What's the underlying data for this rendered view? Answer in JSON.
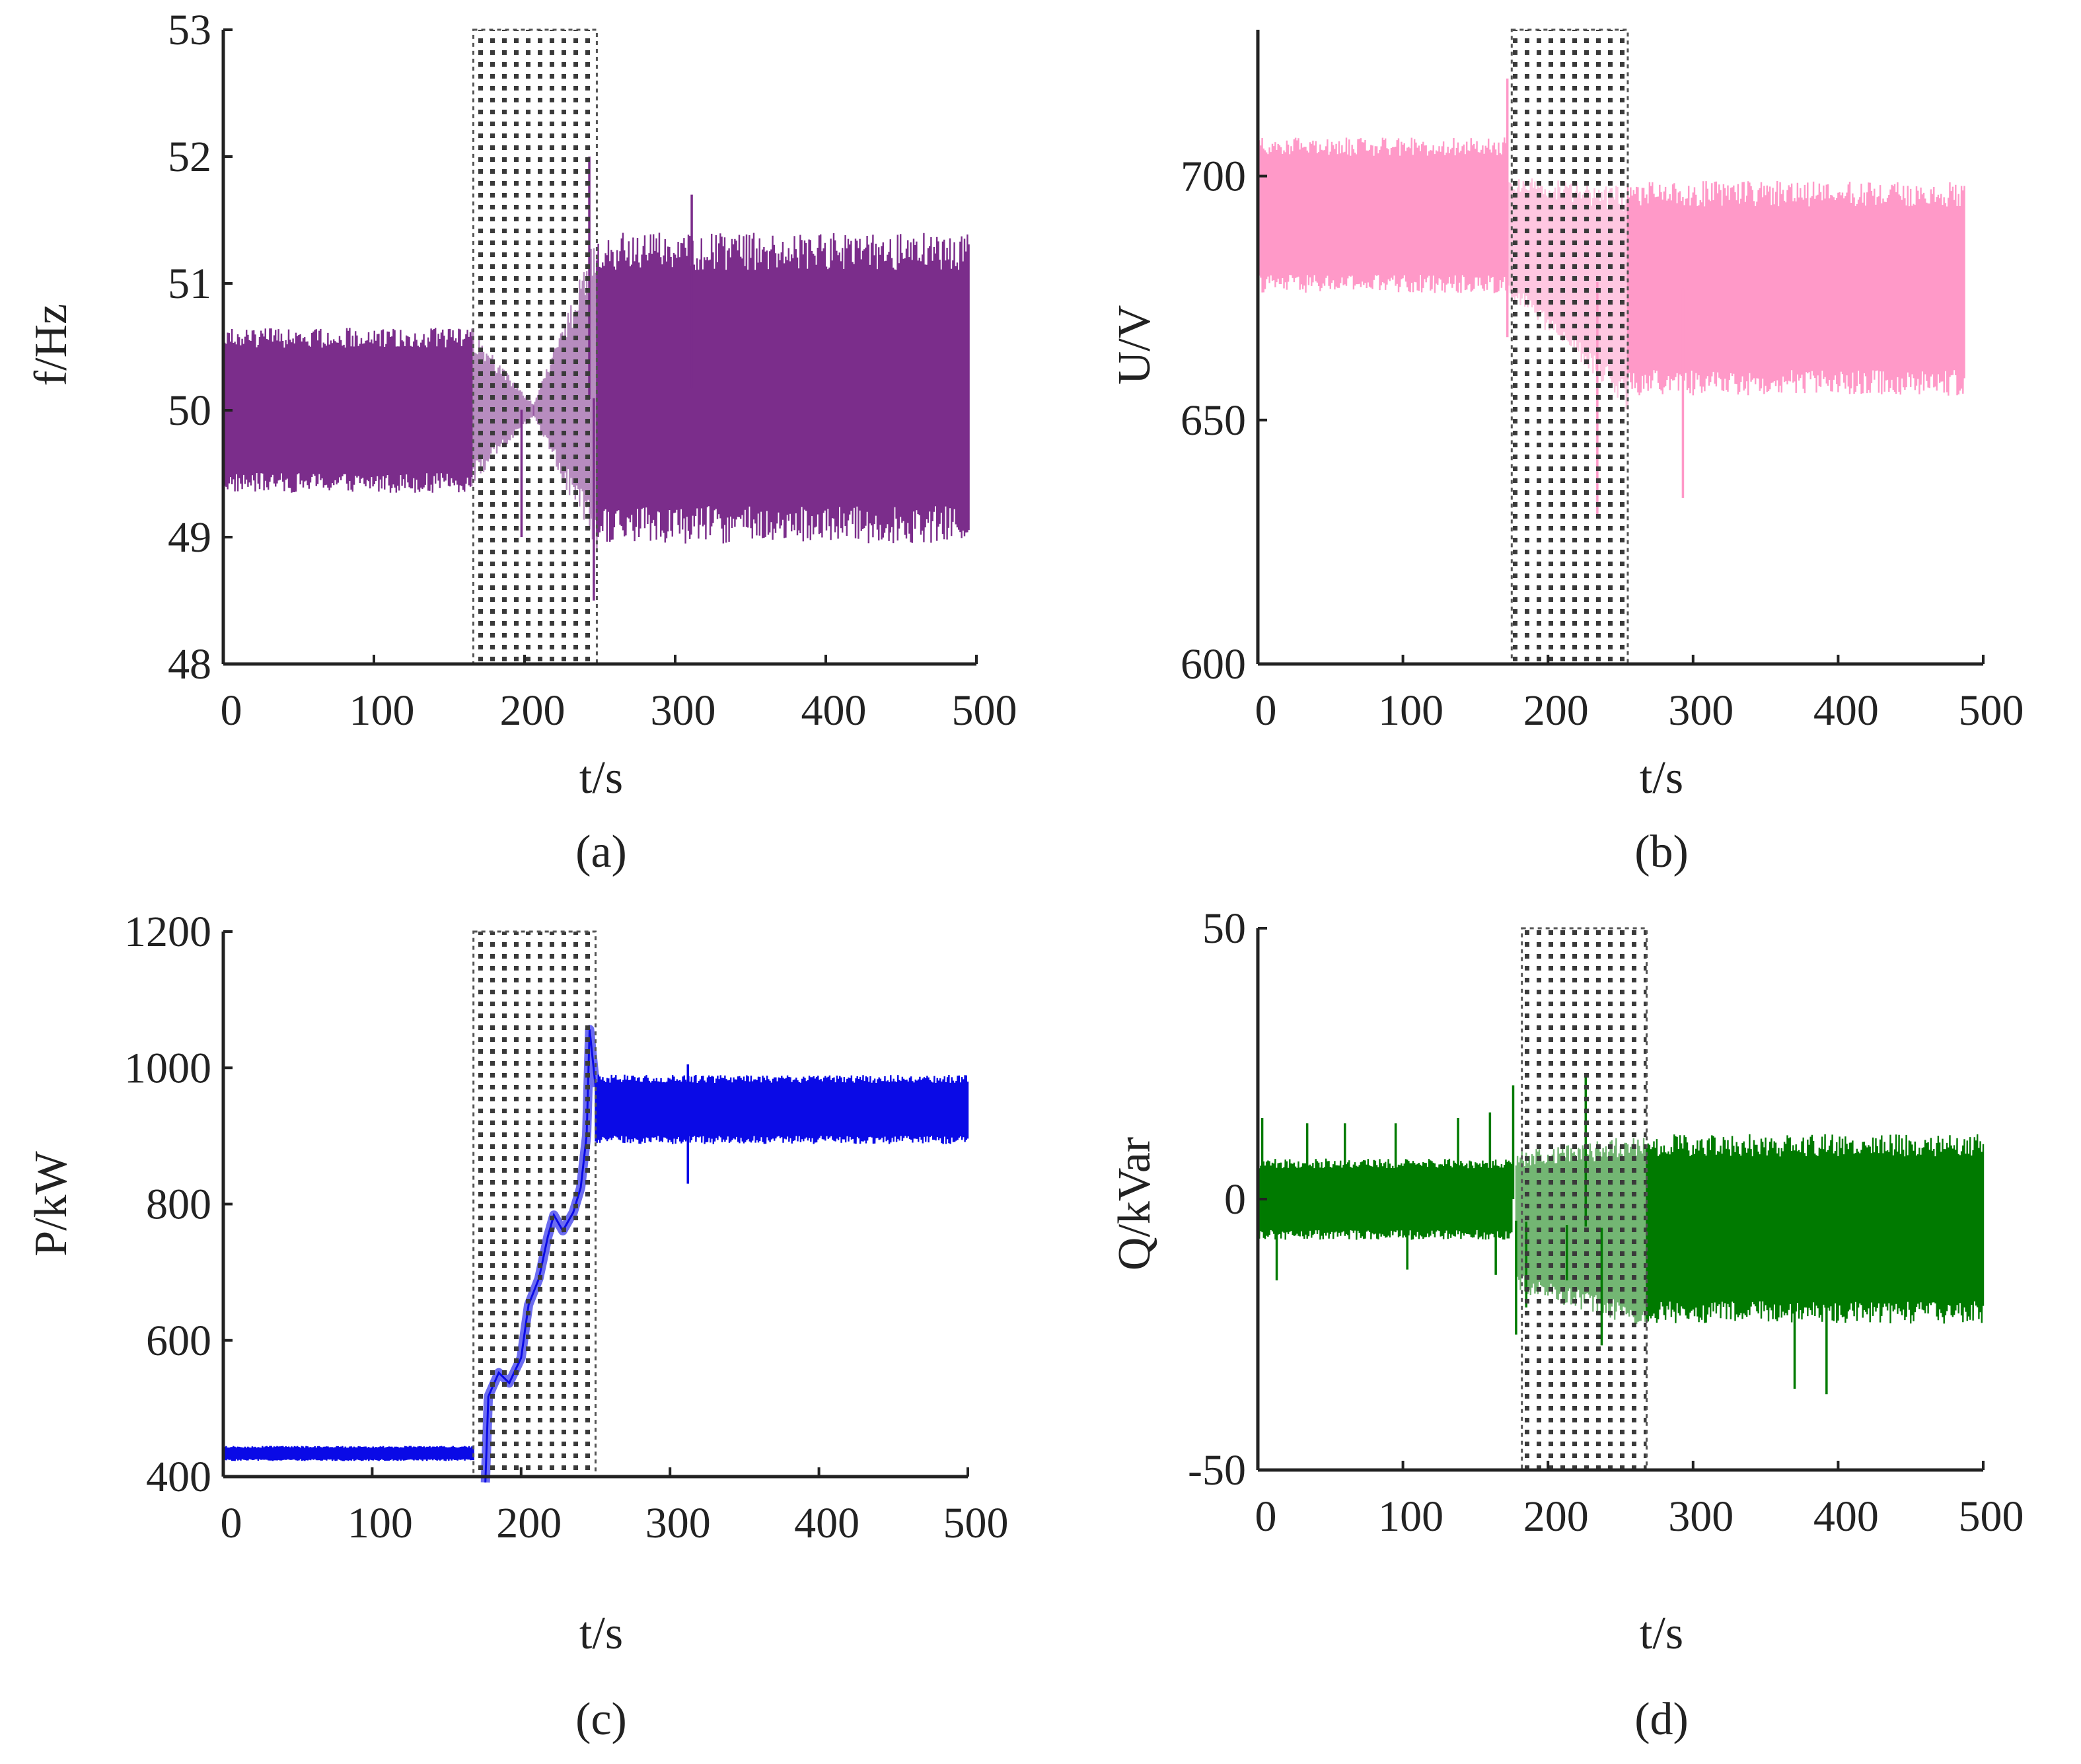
{
  "figure": {
    "panels": [
      {
        "id": "a",
        "caption": "(a)"
      },
      {
        "id": "b",
        "caption": "(b)"
      },
      {
        "id": "c",
        "caption": "(c)"
      },
      {
        "id": "d",
        "caption": "(d)"
      }
    ]
  },
  "chart_data": [
    {
      "id": "a",
      "type": "line",
      "caption": "(a)",
      "title": "",
      "xlabel": "t/s",
      "ylabel": "f/Hz",
      "xlim": [
        0,
        500
      ],
      "ylim": [
        48,
        53
      ],
      "xticks": [
        0,
        100,
        200,
        300,
        400,
        500
      ],
      "yticks": [
        48,
        49,
        50,
        51,
        52,
        53
      ],
      "x_end": 495,
      "shaded_interval": [
        166,
        248
      ],
      "color": "#7b2d8b",
      "band_segments": [
        {
          "x": [
            0,
            165
          ],
          "low": 49.35,
          "high": 50.65,
          "kind": "noise"
        },
        {
          "x": [
            165,
            206
          ],
          "low": [
            49.4,
            49.95
          ],
          "high": [
            50.65,
            50.05
          ],
          "kind": "diamond"
        },
        {
          "x": [
            206,
            248
          ],
          "low": [
            49.95,
            48.8
          ],
          "high": [
            50.05,
            51.4
          ],
          "kind": "diamond"
        },
        {
          "x": [
            248,
            495
          ],
          "low": 48.95,
          "high": 51.4,
          "kind": "noise"
        }
      ],
      "spikes": [
        {
          "x": 198,
          "y": 49.0
        },
        {
          "x": 243,
          "y": 52.0
        },
        {
          "x": 246,
          "y": 48.5
        },
        {
          "x": 311,
          "y": 51.7
        }
      ],
      "series": [
        {
          "name": "frequency",
          "values_summary": "oscillation ~49.35–50.65 Hz before 165 s, ~48.95–51.4 Hz after 248 s"
        }
      ]
    },
    {
      "id": "b",
      "type": "line",
      "caption": "(b)",
      "title": "",
      "xlabel": "t/s",
      "ylabel": "U/V",
      "xlim": [
        0,
        500
      ],
      "ylim": [
        600,
        730
      ],
      "xticks": [
        0,
        100,
        200,
        300,
        400,
        500
      ],
      "yticks": [
        600,
        650,
        700
      ],
      "x_end": 487,
      "shaded_interval": [
        175,
        255
      ],
      "color": "#ff99c8",
      "band_segments": [
        {
          "x": [
            0,
            172
          ],
          "low": 676,
          "high": 708,
          "kind": "noise"
        },
        {
          "x": [
            172,
            255
          ],
          "low": [
            676,
            652
          ],
          "high": [
            700,
            698
          ],
          "kind": "noise-taper"
        },
        {
          "x": [
            255,
            487
          ],
          "low": 655,
          "high": 699,
          "kind": "noise"
        }
      ],
      "spikes": [
        {
          "x": 172,
          "y": 720
        },
        {
          "x": 172,
          "y": 667
        },
        {
          "x": 234,
          "y": 630
        },
        {
          "x": 293,
          "y": 634
        }
      ],
      "series": [
        {
          "name": "voltage",
          "values_summary": "~676–708 V before 172 s, ~655–699 V after 255 s"
        }
      ]
    },
    {
      "id": "c",
      "type": "line",
      "caption": "(c)",
      "title": "",
      "xlabel": "t/s",
      "ylabel": "P/kW",
      "xlim": [
        0,
        500
      ],
      "ylim": [
        400,
        1200
      ],
      "xticks": [
        0,
        100,
        200,
        300,
        400,
        500
      ],
      "yticks": [
        400,
        600,
        800,
        1000,
        1200
      ],
      "x_end": 500,
      "shaded_interval": [
        168,
        250
      ],
      "color": "#0a0ae6",
      "band_segments": [
        {
          "x": [
            0,
            168
          ],
          "low": 423,
          "high": 445,
          "kind": "noise"
        },
        {
          "x": [
            250,
            500
          ],
          "low": 888,
          "high": 990,
          "kind": "noise"
        }
      ],
      "ramp": [
        [
          176,
          400
        ],
        [
          178,
          520
        ],
        [
          185,
          560
        ],
        [
          192,
          540
        ],
        [
          200,
          580
        ],
        [
          205,
          640
        ],
        [
          212,
          700
        ],
        [
          218,
          760
        ],
        [
          222,
          790
        ],
        [
          228,
          760
        ],
        [
          235,
          790
        ],
        [
          240,
          830
        ],
        [
          244,
          900
        ],
        [
          246,
          1050
        ],
        [
          250,
          980
        ]
      ],
      "spikes": [
        {
          "x": 312,
          "y": 830
        },
        {
          "x": 312,
          "y": 1005
        }
      ],
      "series": [
        {
          "name": "active power",
          "values_summary": "~435 kW before 168 s, ramps up to ~940 kW after 250 s"
        }
      ]
    },
    {
      "id": "d",
      "type": "line",
      "caption": "(d)",
      "title": "",
      "xlabel": "t/s",
      "ylabel": "Q/kVar",
      "xlim": [
        0,
        500
      ],
      "ylim": [
        -50,
        50
      ],
      "xticks": [
        0,
        100,
        200,
        300,
        400,
        500
      ],
      "yticks": [
        -50,
        0,
        50
      ],
      "x_end": 500,
      "shaded_interval": [
        182,
        268
      ],
      "color": "#007a00",
      "band_segments": [
        {
          "x": [
            0,
            175
          ],
          "low": -7.5,
          "high": 7.5,
          "kind": "noise"
        },
        {
          "x": [
            178,
            268
          ],
          "low": [
            -17,
            -24
          ],
          "high": [
            9,
            12
          ],
          "kind": "noise"
        },
        {
          "x": [
            268,
            500
          ],
          "low": -23,
          "high": 12,
          "kind": "noise"
        }
      ],
      "spikes": [
        {
          "x": 3,
          "y": 15
        },
        {
          "x": 13,
          "y": -15
        },
        {
          "x": 34,
          "y": 14
        },
        {
          "x": 60,
          "y": 14
        },
        {
          "x": 95,
          "y": 14
        },
        {
          "x": 103,
          "y": -13
        },
        {
          "x": 138,
          "y": 15
        },
        {
          "x": 160,
          "y": 16
        },
        {
          "x": 164,
          "y": -14
        },
        {
          "x": 176,
          "y": 21
        },
        {
          "x": 178,
          "y": -25
        },
        {
          "x": 185,
          "y": -20
        },
        {
          "x": 213,
          "y": -15
        },
        {
          "x": 226,
          "y": 23
        },
        {
          "x": 237,
          "y": -27
        },
        {
          "x": 370,
          "y": -35
        },
        {
          "x": 392,
          "y": -36
        }
      ],
      "series": [
        {
          "name": "reactive power",
          "values_summary": "~±7.5 kVar before 175 s, ~-23 to 12 kVar after 268 s"
        }
      ]
    }
  ]
}
